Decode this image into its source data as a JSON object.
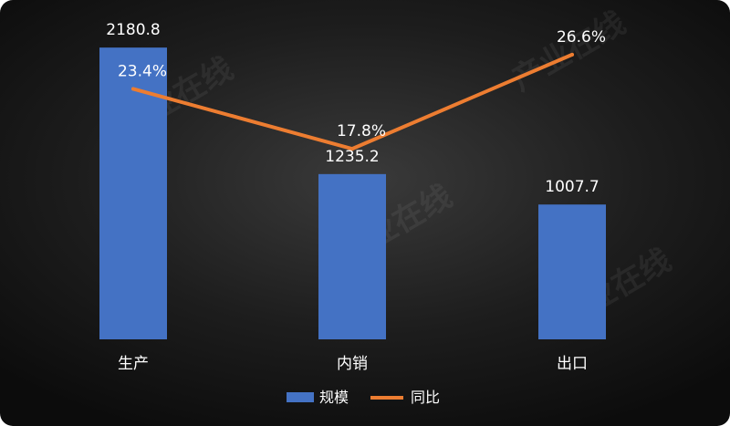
{
  "chart_data": {
    "type": "bar",
    "categories": [
      "生产",
      "内销",
      "出口"
    ],
    "series": [
      {
        "name": "规模",
        "type": "bar",
        "values": [
          2180.8,
          1235.2,
          1007.7
        ],
        "color": "#4472c4",
        "labels": [
          "2180.8",
          "1235.2",
          "1007.7"
        ]
      },
      {
        "name": "同比",
        "type": "line",
        "values": [
          23.4,
          17.8,
          26.6
        ],
        "color": "#ed7d31",
        "labels": [
          "23.4%",
          "17.8%",
          "26.6%"
        ]
      }
    ],
    "ylim": [
      0,
      2400
    ],
    "ylim_secondary": [
      0,
      30
    ],
    "legend": "bottom",
    "grid": false
  },
  "watermark": {
    "text": "产业在线"
  }
}
